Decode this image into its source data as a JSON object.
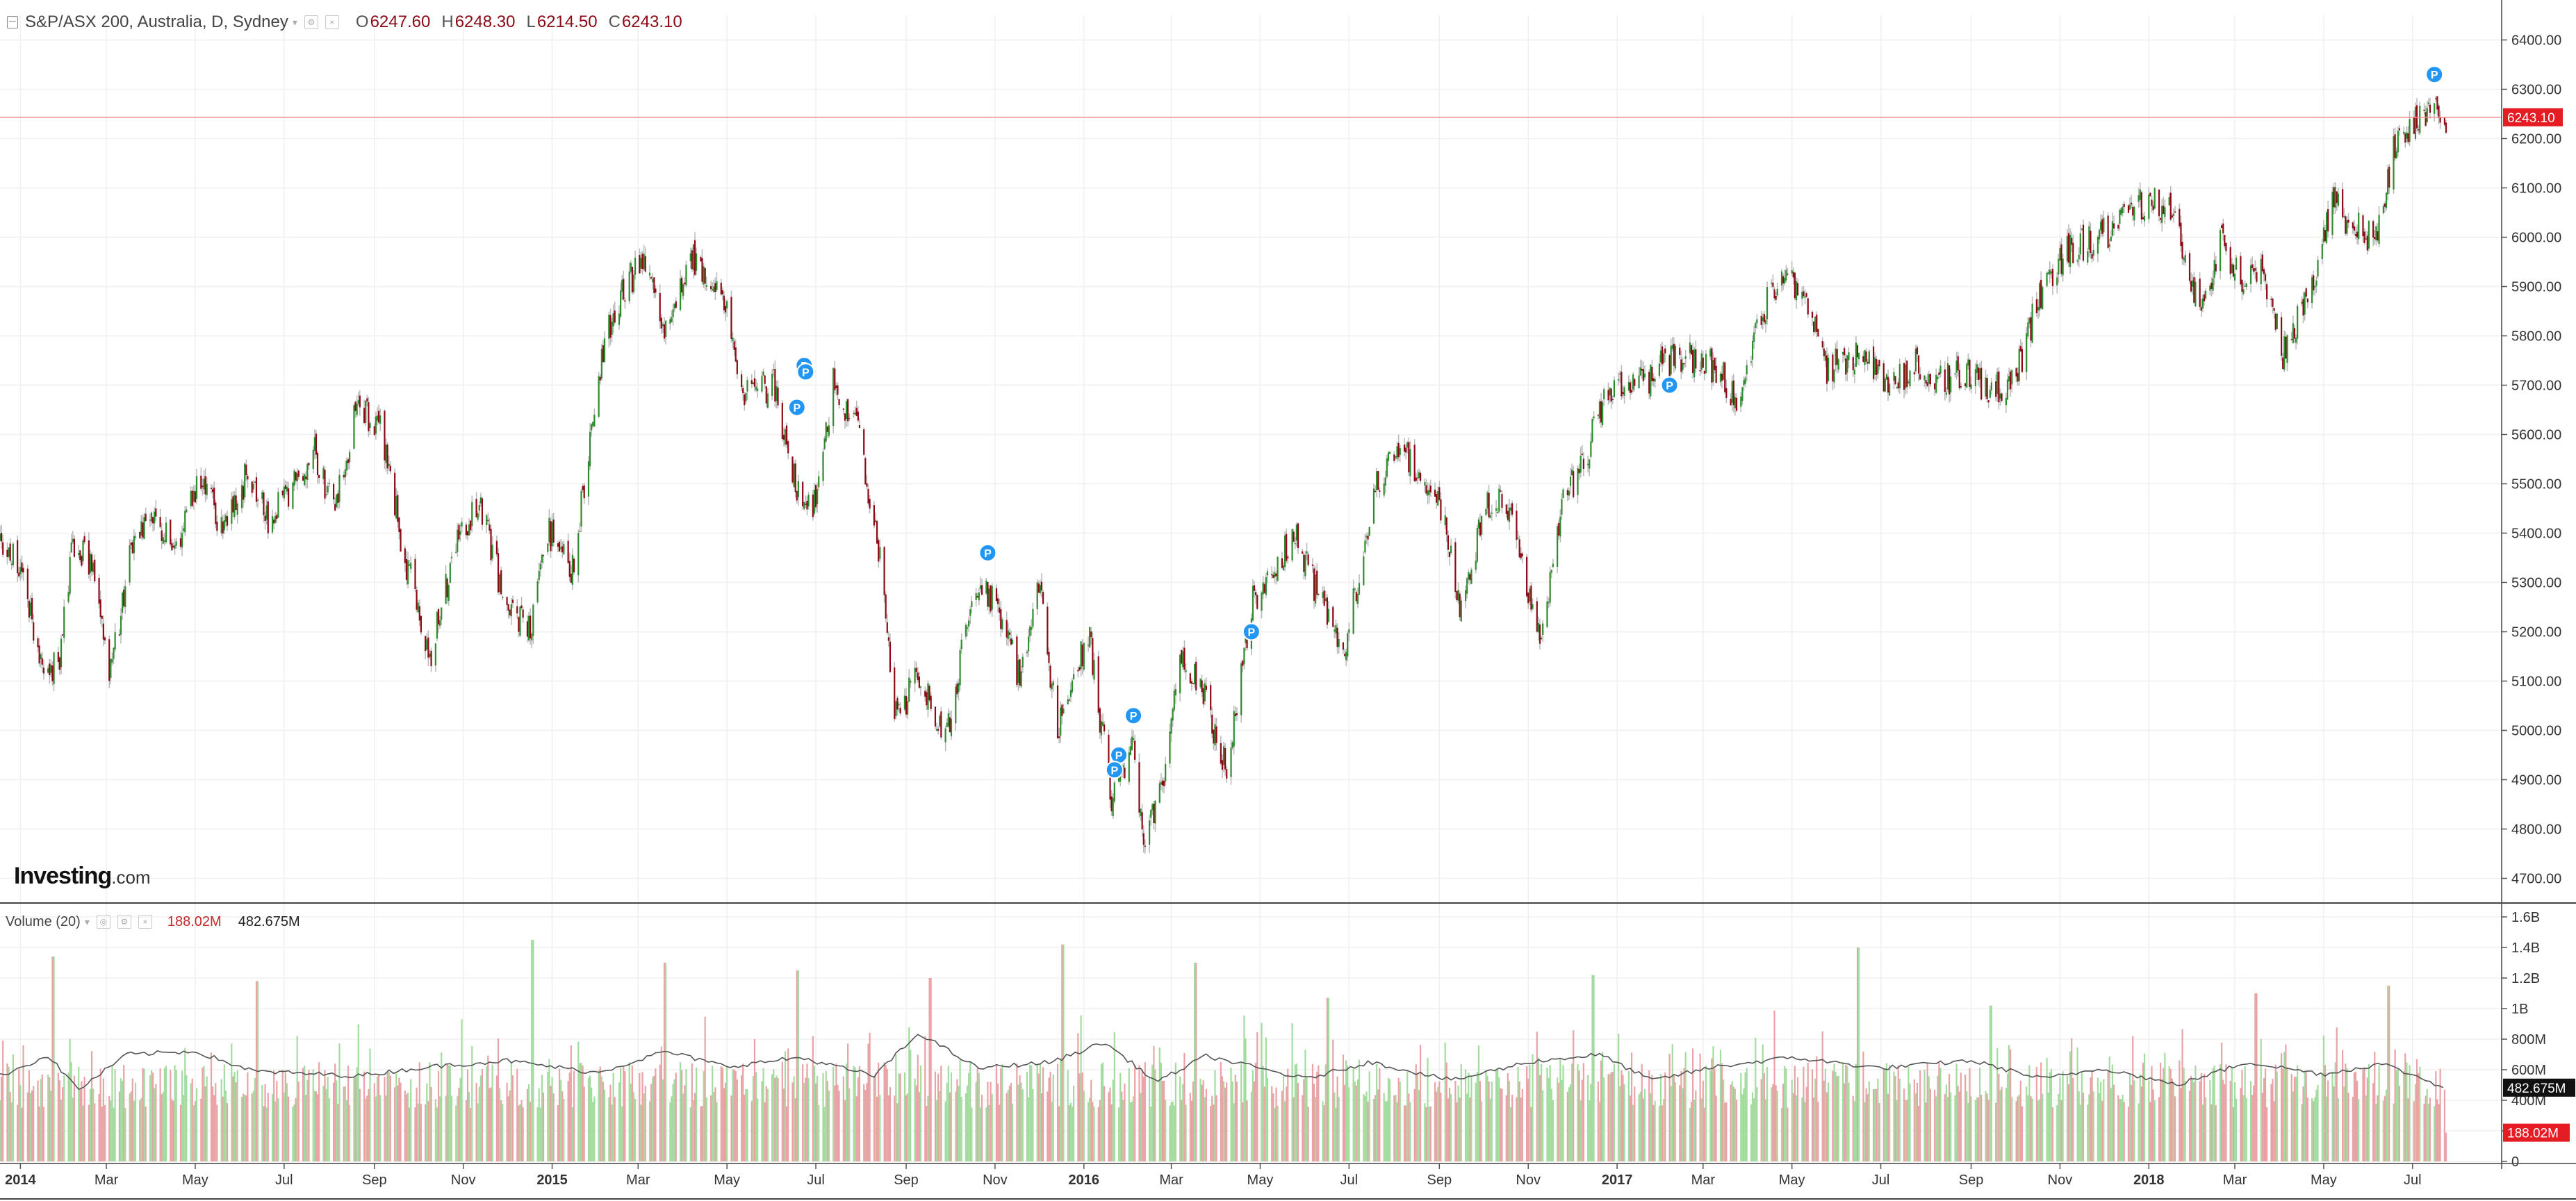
{
  "legend": {
    "symbol": "S&P/ASX 200, Australia, D, Sydney",
    "open_label": "O",
    "open_value": "6247.60",
    "high_label": "H",
    "high_value": "6248.30",
    "low_label": "L",
    "low_value": "6214.50",
    "close_label": "C",
    "close_value": "6243.10"
  },
  "volume_legend": {
    "label": "Volume (20)",
    "value_1": "188.02M",
    "value_2": "482.675M"
  },
  "logo": {
    "text": "Investing",
    "suffix": ".com"
  },
  "colors": {
    "up": "#2e8b2e",
    "down": "#8b0a16",
    "wick": "#b8b8b8",
    "vol_up": "#a4dca0",
    "vol_down": "#e9a3a6",
    "price_line": "#f08c8c",
    "price_badge": "#e51c23",
    "marker": "#2196f3",
    "grid": "#f0f0f0",
    "ma": "#555555",
    "vol_badge_dark": "#111111",
    "vol_badge_red": "#e51c23"
  },
  "chart_data": [
    {
      "type": "candlestick",
      "title": "S&P/ASX 200, Australia, D, Sydney",
      "x_ticks": [
        "2014",
        "Mar",
        "May",
        "Jul",
        "Sep",
        "Nov",
        "2015",
        "Mar",
        "May",
        "Jul",
        "Sep",
        "Nov",
        "2016",
        "Mar",
        "May",
        "Jul",
        "Sep",
        "Nov",
        "2017",
        "Mar",
        "May",
        "Jul",
        "Sep",
        "Nov",
        "2018",
        "Mar",
        "May",
        "Jul"
      ],
      "x_ticks_bold": [
        "2014",
        "2015",
        "2016",
        "2017",
        "2018"
      ],
      "y_ticks": [
        "6400.00",
        "6300.00",
        "6200.00",
        "6100.00",
        "6000.00",
        "5900.00",
        "5800.00",
        "5700.00",
        "5600.00",
        "5500.00",
        "5400.00",
        "5300.00",
        "5200.00",
        "5100.00",
        "5000.00",
        "4900.00",
        "4800.00",
        "4700.00"
      ],
      "ylim": [
        4650,
        6450
      ],
      "xlim": [
        "2013-12-18",
        "2018-07-24"
      ],
      "last_price": "6243.10",
      "close_path": [
        [
          "2013-12-18",
          5380
        ],
        [
          "2014-01-03",
          5320
        ],
        [
          "2014-01-17",
          5090
        ],
        [
          "2014-01-28",
          5150
        ],
        [
          "2014-02-06",
          5380
        ],
        [
          "2014-02-20",
          5330
        ],
        [
          "2014-03-04",
          5110
        ],
        [
          "2014-03-20",
          5400
        ],
        [
          "2014-04-03",
          5430
        ],
        [
          "2014-04-16",
          5360
        ],
        [
          "2014-05-02",
          5500
        ],
        [
          "2014-05-20",
          5420
        ],
        [
          "2014-06-06",
          5520
        ],
        [
          "2014-06-20",
          5420
        ],
        [
          "2014-07-07",
          5490
        ],
        [
          "2014-07-21",
          5570
        ],
        [
          "2014-08-04",
          5450
        ],
        [
          "2014-08-20",
          5650
        ],
        [
          "2014-09-05",
          5620
        ],
        [
          "2014-09-22",
          5350
        ],
        [
          "2014-10-10",
          5150
        ],
        [
          "2014-10-28",
          5400
        ],
        [
          "2014-11-12",
          5460
        ],
        [
          "2014-11-28",
          5280
        ],
        [
          "2014-12-16",
          5200
        ],
        [
          "2014-12-30",
          5400
        ],
        [
          "2015-01-15",
          5330
        ],
        [
          "2015-02-06",
          5800
        ],
        [
          "2015-02-20",
          5900
        ],
        [
          "2015-03-05",
          5960
        ],
        [
          "2015-03-20",
          5800
        ],
        [
          "2015-04-07",
          5960
        ],
        [
          "2015-04-27",
          5900
        ],
        [
          "2015-05-12",
          5680
        ],
        [
          "2015-06-02",
          5700
        ],
        [
          "2015-06-18",
          5500
        ],
        [
          "2015-06-30",
          5460
        ],
        [
          "2015-07-13",
          5700
        ],
        [
          "2015-07-28",
          5630
        ],
        [
          "2015-08-12",
          5400
        ],
        [
          "2015-08-24",
          5020
        ],
        [
          "2015-09-08",
          5100
        ],
        [
          "2015-09-29",
          5000
        ],
        [
          "2015-10-19",
          5300
        ],
        [
          "2015-11-03",
          5250
        ],
        [
          "2015-11-18",
          5100
        ],
        [
          "2015-12-01",
          5300
        ],
        [
          "2015-12-14",
          5000
        ],
        [
          "2016-01-04",
          5200
        ],
        [
          "2016-01-20",
          4860
        ],
        [
          "2016-02-03",
          4980
        ],
        [
          "2016-02-10",
          4780
        ],
        [
          "2016-02-24",
          4890
        ],
        [
          "2016-03-07",
          5150
        ],
        [
          "2016-03-22",
          5080
        ],
        [
          "2016-04-08",
          4920
        ],
        [
          "2016-04-25",
          5260
        ],
        [
          "2016-05-10",
          5330
        ],
        [
          "2016-05-25",
          5400
        ],
        [
          "2016-06-13",
          5250
        ],
        [
          "2016-06-27",
          5150
        ],
        [
          "2016-07-20",
          5500
        ],
        [
          "2016-08-03",
          5570
        ],
        [
          "2016-08-18",
          5530
        ],
        [
          "2016-09-02",
          5450
        ],
        [
          "2016-09-15",
          5250
        ],
        [
          "2016-10-03",
          5450
        ],
        [
          "2016-10-17",
          5470
        ],
        [
          "2016-11-01",
          5280
        ],
        [
          "2016-11-09",
          5180
        ],
        [
          "2016-11-24",
          5450
        ],
        [
          "2016-12-09",
          5550
        ],
        [
          "2016-12-28",
          5700
        ],
        [
          "2017-01-16",
          5700
        ],
        [
          "2017-02-06",
          5750
        ],
        [
          "2017-02-20",
          5760
        ],
        [
          "2017-03-07",
          5740
        ],
        [
          "2017-03-24",
          5680
        ],
        [
          "2017-04-10",
          5850
        ],
        [
          "2017-04-28",
          5920
        ],
        [
          "2017-05-10",
          5870
        ],
        [
          "2017-05-25",
          5730
        ],
        [
          "2017-06-15",
          5770
        ],
        [
          "2017-07-07",
          5690
        ],
        [
          "2017-07-26",
          5750
        ],
        [
          "2017-08-10",
          5710
        ],
        [
          "2017-09-01",
          5720
        ],
        [
          "2017-09-15",
          5690
        ],
        [
          "2017-10-02",
          5720
        ],
        [
          "2017-10-20",
          5900
        ],
        [
          "2017-11-08",
          5980
        ],
        [
          "2017-11-23",
          5990
        ],
        [
          "2017-12-08",
          6020
        ],
        [
          "2017-12-28",
          6070
        ],
        [
          "2018-01-16",
          6060
        ],
        [
          "2018-02-05",
          5850
        ],
        [
          "2018-02-20",
          5990
        ],
        [
          "2018-03-06",
          5900
        ],
        [
          "2018-03-20",
          5940
        ],
        [
          "2018-04-03",
          5760
        ],
        [
          "2018-04-23",
          5900
        ],
        [
          "2018-05-07",
          6080
        ],
        [
          "2018-05-21",
          6020
        ],
        [
          "2018-06-06",
          6000
        ],
        [
          "2018-06-20",
          6200
        ],
        [
          "2018-07-04",
          6240
        ],
        [
          "2018-07-16",
          6280
        ],
        [
          "2018-07-24",
          6243
        ]
      ],
      "markers": [
        {
          "label": "P",
          "date": "2015-06-23",
          "price": 5740
        },
        {
          "label": "P",
          "date": "2015-06-24",
          "price": 5727
        },
        {
          "label": "P",
          "date": "2015-06-18",
          "price": 5655
        },
        {
          "label": "P",
          "date": "2015-10-27",
          "price": 5360
        },
        {
          "label": "P",
          "date": "2016-01-25",
          "price": 4950
        },
        {
          "label": "P",
          "date": "2016-01-22",
          "price": 4920
        },
        {
          "label": "P",
          "date": "2016-02-04",
          "price": 5030
        },
        {
          "label": "P",
          "date": "2016-04-25",
          "price": 5200
        },
        {
          "label": "P",
          "date": "2017-02-06",
          "price": 5700
        },
        {
          "label": "P",
          "date": "2018-07-16",
          "price": 6330
        }
      ]
    },
    {
      "type": "bar",
      "title": "Volume (20)",
      "y_ticks": [
        "1.6B",
        "1.4B",
        "1.2B",
        "1B",
        "800M",
        "600M",
        "400M",
        "200M",
        "0"
      ],
      "ylim": [
        0,
        1600
      ],
      "y_unit": "M",
      "current_volume": "188.02M",
      "moving_average": "482.675M",
      "typical_range": [
        350,
        650
      ],
      "spikes": [
        {
          "date": "2014-01-24",
          "value": 1340
        },
        {
          "date": "2014-06-13",
          "value": 1180
        },
        {
          "date": "2014-12-19",
          "value": 1450
        },
        {
          "date": "2015-03-20",
          "value": 1300
        },
        {
          "date": "2015-06-19",
          "value": 1250
        },
        {
          "date": "2015-09-18",
          "value": 1200
        },
        {
          "date": "2015-12-18",
          "value": 1420
        },
        {
          "date": "2016-03-18",
          "value": 1300
        },
        {
          "date": "2016-06-17",
          "value": 1070
        },
        {
          "date": "2016-12-16",
          "value": 1220
        },
        {
          "date": "2017-06-16",
          "value": 1400
        },
        {
          "date": "2017-09-15",
          "value": 1020
        },
        {
          "date": "2018-03-16",
          "value": 1100
        },
        {
          "date": "2018-06-15",
          "value": 1150
        }
      ],
      "ma_path": [
        [
          "2013-12-18",
          560
        ],
        [
          "2014-01-20",
          690
        ],
        [
          "2014-02-10",
          470
        ],
        [
          "2014-03-15",
          700
        ],
        [
          "2014-05-01",
          720
        ],
        [
          "2014-06-10",
          590
        ],
        [
          "2014-08-20",
          560
        ],
        [
          "2014-10-10",
          620
        ],
        [
          "2014-12-01",
          660
        ],
        [
          "2015-02-01",
          580
        ],
        [
          "2015-03-20",
          720
        ],
        [
          "2015-05-01",
          620
        ],
        [
          "2015-06-20",
          680
        ],
        [
          "2015-08-10",
          560
        ],
        [
          "2015-09-10",
          840
        ],
        [
          "2015-10-20",
          610
        ],
        [
          "2015-12-10",
          650
        ],
        [
          "2016-01-15",
          780
        ],
        [
          "2016-02-20",
          520
        ],
        [
          "2016-03-25",
          690
        ],
        [
          "2016-06-01",
          540
        ],
        [
          "2016-07-15",
          650
        ],
        [
          "2016-09-10",
          530
        ],
        [
          "2016-11-01",
          650
        ],
        [
          "2016-12-20",
          700
        ],
        [
          "2017-01-25",
          530
        ],
        [
          "2017-03-10",
          620
        ],
        [
          "2017-05-01",
          680
        ],
        [
          "2017-07-01",
          610
        ],
        [
          "2017-09-01",
          660
        ],
        [
          "2017-10-20",
          540
        ],
        [
          "2017-12-01",
          610
        ],
        [
          "2018-01-20",
          500
        ],
        [
          "2018-03-10",
          650
        ],
        [
          "2018-05-01",
          570
        ],
        [
          "2018-06-10",
          640
        ],
        [
          "2018-07-24",
          483
        ]
      ]
    }
  ]
}
